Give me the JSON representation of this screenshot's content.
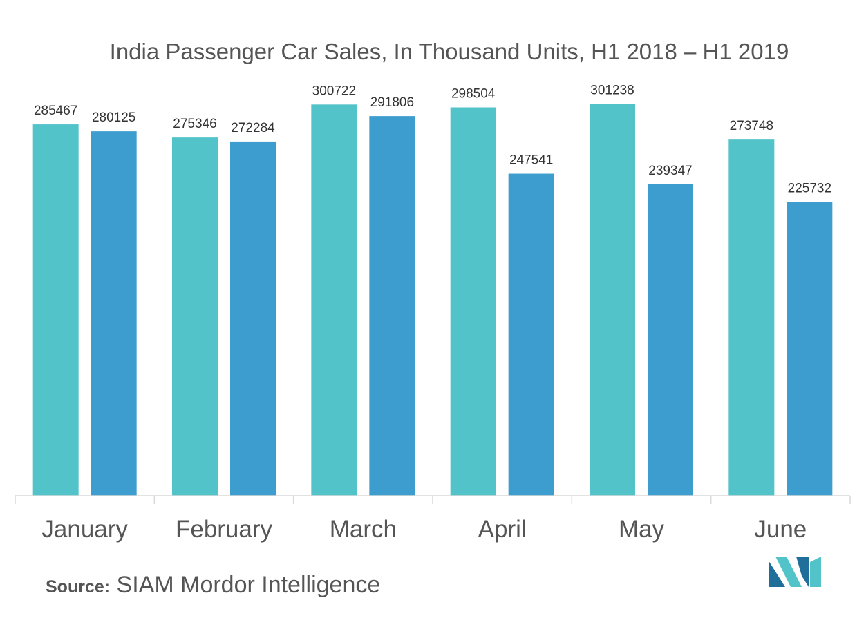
{
  "chart_data": {
    "type": "bar",
    "title": "India Passenger Car Sales, In Thousand Units, H1 2018 – H1 2019",
    "categories": [
      "January",
      "February",
      "March",
      "April",
      "May",
      "June"
    ],
    "series": [
      {
        "values": [
          285467,
          275346,
          300722,
          298504,
          301238,
          273748
        ],
        "color": "#52c3c9"
      },
      {
        "values": [
          280125,
          272284,
          291806,
          247541,
          239347,
          225732
        ],
        "color": "#3c9dce"
      }
    ],
    "ylim": [
      0,
      320000
    ],
    "xlabel": "",
    "ylabel": "",
    "grid": false,
    "data_labels": true
  },
  "source": {
    "label": "Source:",
    "text": "SIAM Mordor Intelligence"
  },
  "logo": {
    "colors": [
      "#1f6f9a",
      "#52c3c9"
    ]
  }
}
